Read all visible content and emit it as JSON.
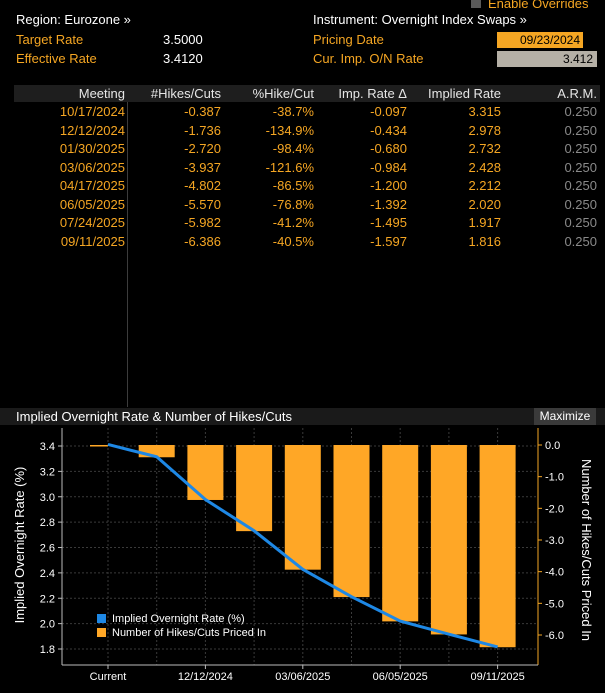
{
  "header": {
    "region_label": "Region: Eurozone »",
    "instrument_label": "Instrument: Overnight Index Swaps »",
    "enable_overrides": "Enable Overrides",
    "target_rate_label": "Target Rate",
    "target_rate_value": "3.5000",
    "effective_rate_label": "Effective Rate",
    "effective_rate_value": "3.4120",
    "pricing_date_label": "Pricing Date",
    "pricing_date_value": "09/23/2024",
    "cur_imp_label": "Cur. Imp. O/N Rate",
    "cur_imp_value": "3.412"
  },
  "table": {
    "columns": [
      "Meeting",
      "#Hikes/Cuts",
      "%Hike/Cut",
      "Imp. Rate Δ",
      "Implied Rate",
      "A.R.M."
    ],
    "rows": [
      {
        "meeting": "10/17/2024",
        "hikes": "-0.387",
        "pct": "-38.7%",
        "delta": "-0.097",
        "implied": "3.315",
        "arm": "0.250"
      },
      {
        "meeting": "12/12/2024",
        "hikes": "-1.736",
        "pct": "-134.9%",
        "delta": "-0.434",
        "implied": "2.978",
        "arm": "0.250"
      },
      {
        "meeting": "01/30/2025",
        "hikes": "-2.720",
        "pct": "-98.4%",
        "delta": "-0.680",
        "implied": "2.732",
        "arm": "0.250"
      },
      {
        "meeting": "03/06/2025",
        "hikes": "-3.937",
        "pct": "-121.6%",
        "delta": "-0.984",
        "implied": "2.428",
        "arm": "0.250"
      },
      {
        "meeting": "04/17/2025",
        "hikes": "-4.802",
        "pct": "-86.5%",
        "delta": "-1.200",
        "implied": "2.212",
        "arm": "0.250"
      },
      {
        "meeting": "06/05/2025",
        "hikes": "-5.570",
        "pct": "-76.8%",
        "delta": "-1.392",
        "implied": "2.020",
        "arm": "0.250"
      },
      {
        "meeting": "07/24/2025",
        "hikes": "-5.982",
        "pct": "-41.2%",
        "delta": "-1.495",
        "implied": "1.917",
        "arm": "0.250"
      },
      {
        "meeting": "09/11/2025",
        "hikes": "-6.386",
        "pct": "-40.5%",
        "delta": "-1.597",
        "implied": "1.816",
        "arm": "0.250"
      }
    ]
  },
  "chart_panel": {
    "title": "Implied Overnight Rate & Number of Hikes/Cuts",
    "maximize_label": "Maximize"
  },
  "colors": {
    "accent_orange": "#f5a623",
    "line_blue": "#1e88e5",
    "bar_orange": "#ffa726"
  },
  "chart_data": {
    "type": "bar",
    "title": "Implied Overnight Rate & Number of Hikes/Cuts",
    "categories": [
      "Current",
      "10/17/2024",
      "12/12/2024",
      "01/30/2025",
      "03/06/2025",
      "04/17/2025",
      "06/05/2025",
      "07/24/2025",
      "09/11/2025"
    ],
    "x_tick_labels": [
      "Current",
      "12/12/2024",
      "03/06/2025",
      "06/05/2025",
      "09/11/2025"
    ],
    "ylabel_left": "Implied Overnight Rate (%)",
    "ylabel_right": "Number of Hikes/Cuts Priced In",
    "ylim_left": [
      1.7,
      3.55
    ],
    "ylim_right": [
      -6.95,
      0.35
    ],
    "yticks_left": [
      "3.4",
      "3.2",
      "3.0",
      "2.8",
      "2.6",
      "2.4",
      "2.2",
      "2.0",
      "1.8"
    ],
    "yticks_right": [
      "0.0",
      "-1.0",
      "-2.0",
      "-3.0",
      "-4.0",
      "-5.0",
      "-6.0"
    ],
    "series": [
      {
        "name": "Implied Overnight Rate (%)",
        "type": "line",
        "values": [
          3.412,
          3.315,
          2.978,
          2.732,
          2.428,
          2.212,
          2.02,
          1.917,
          1.816
        ]
      },
      {
        "name": "Number of Hikes/Cuts Priced In",
        "type": "bar",
        "values": [
          0.0,
          -0.387,
          -1.736,
          -2.72,
          -3.937,
          -4.802,
          -5.57,
          -5.982,
          -6.386
        ]
      }
    ],
    "legend_position": "bottom-left",
    "grid": true
  }
}
